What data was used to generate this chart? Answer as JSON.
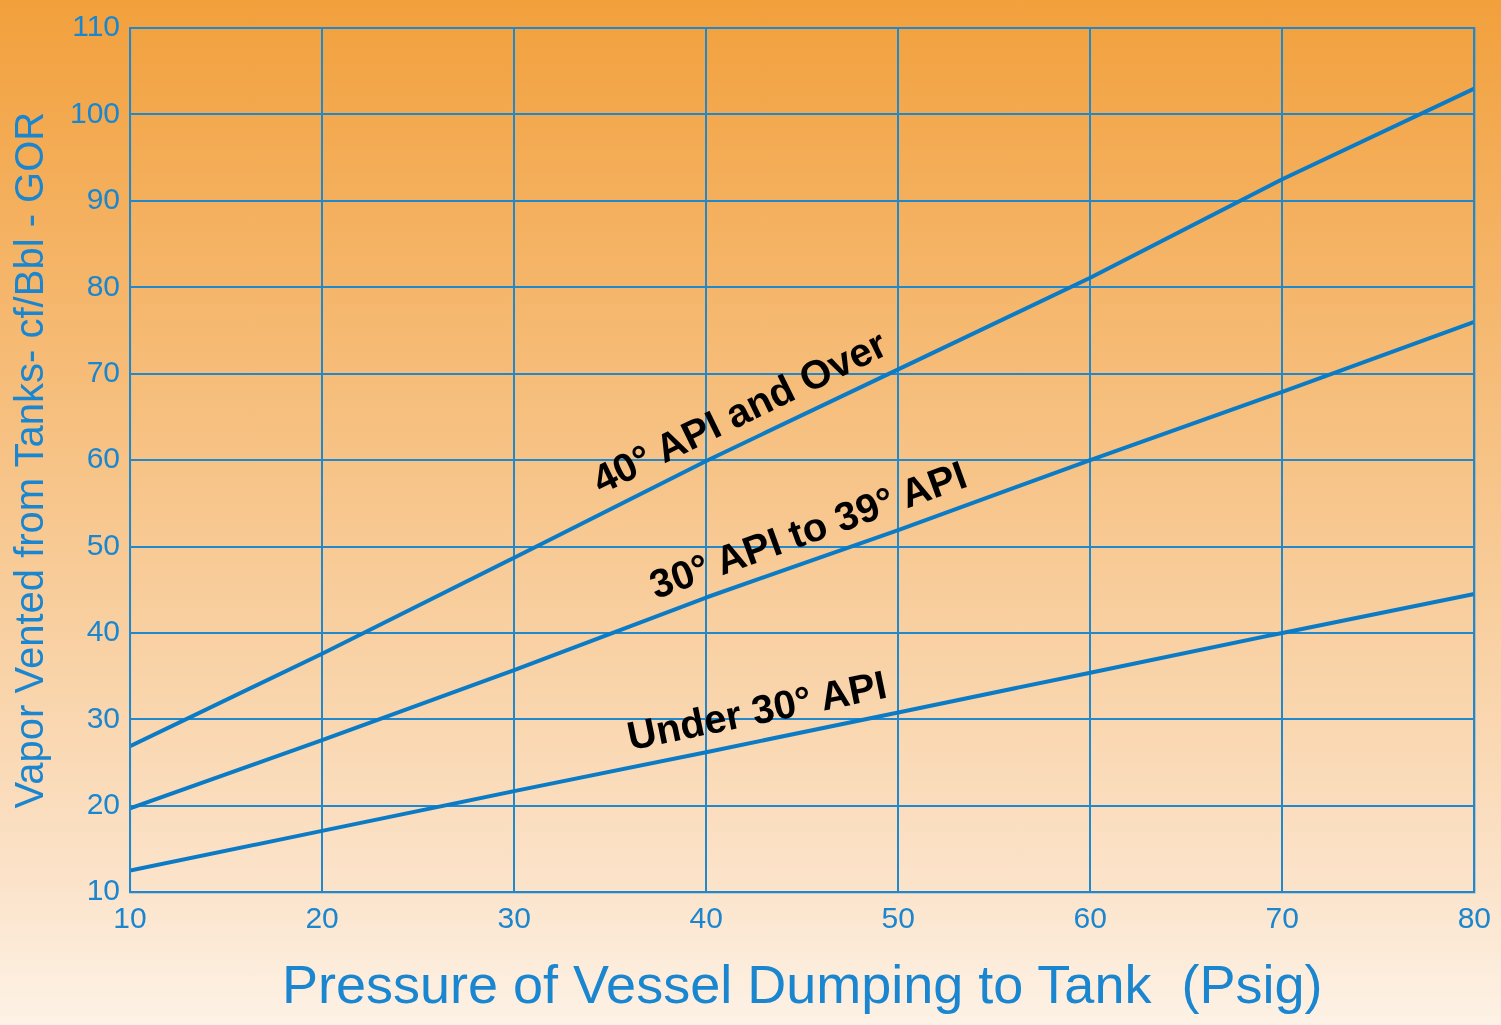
{
  "chart_data": {
    "type": "line",
    "xlabel": "Pressure of Vessel Dumping to Tank  (Psig)",
    "ylabel": "Vapor Vented from Tanks- cf/Bbl - GOR",
    "x": [
      10,
      20,
      30,
      40,
      50,
      60,
      70,
      80
    ],
    "series": [
      {
        "name": "40° API and Over",
        "color": "#0b7bc6",
        "values": [
          26.9,
          37.6,
          48.7,
          59.9,
          70.5,
          81.1,
          92.5,
          103
        ]
      },
      {
        "name": "30° API to 39° API",
        "color": "#0b7bc6",
        "values": [
          19.7,
          27.6,
          35.7,
          44.1,
          51.9,
          60,
          67.9,
          76
        ]
      },
      {
        "name": "Under 30° API",
        "color": "#0b7bc6",
        "values": [
          12.5,
          17.1,
          21.7,
          26.2,
          30.8,
          35.4,
          40,
          44.5
        ]
      }
    ],
    "xlim": [
      10,
      80
    ],
    "xticks": [
      10,
      20,
      30,
      40,
      50,
      60,
      70,
      80
    ],
    "ylim": [
      10,
      110
    ],
    "yticks": [
      10,
      20,
      30,
      40,
      50,
      60,
      70,
      80,
      90,
      100,
      110
    ],
    "grid": true,
    "legend": false,
    "marker": "none",
    "line_style": "solid"
  }
}
